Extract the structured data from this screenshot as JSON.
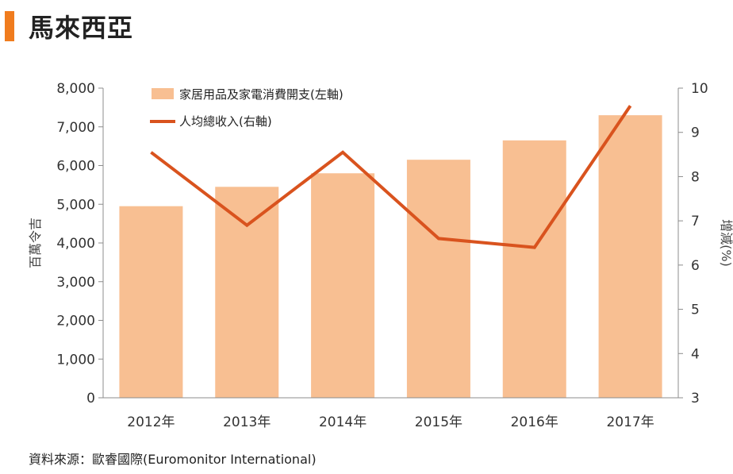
{
  "page_title": "馬來西亞",
  "source_text": "資料來源：歐睿國際(Euromonitor International)",
  "colors": {
    "accent": "#f07c1e",
    "bar": "#f8bf92",
    "line": "#d9531e",
    "axis": "#8c8c8c"
  },
  "chart_data": {
    "type": "bar",
    "categories": [
      "2012年",
      "2013年",
      "2014年",
      "2015年",
      "2016年",
      "2017年"
    ],
    "series": [
      {
        "name": "家居用品及家電消費開支(左軸)",
        "type": "bar",
        "axis": "left",
        "values": [
          4950,
          5450,
          5800,
          6150,
          6650,
          7300
        ]
      },
      {
        "name": "人均總收入(右軸)",
        "type": "line",
        "axis": "right",
        "values": [
          8.55,
          6.9,
          8.55,
          6.6,
          6.4,
          9.6
        ]
      }
    ],
    "ylabel": "百萬令吉",
    "y2label": "增減(%)",
    "ylim": [
      0,
      8000
    ],
    "y2lim": [
      3,
      10
    ],
    "yticks": [
      "0",
      "1,000",
      "2,000",
      "3,000",
      "4,000",
      "5,000",
      "6,000",
      "7,000",
      "8,000"
    ],
    "y2ticks": [
      "3",
      "4",
      "5",
      "6",
      "7",
      "8",
      "9",
      "10"
    ],
    "grid": false,
    "legend": "top-left"
  }
}
